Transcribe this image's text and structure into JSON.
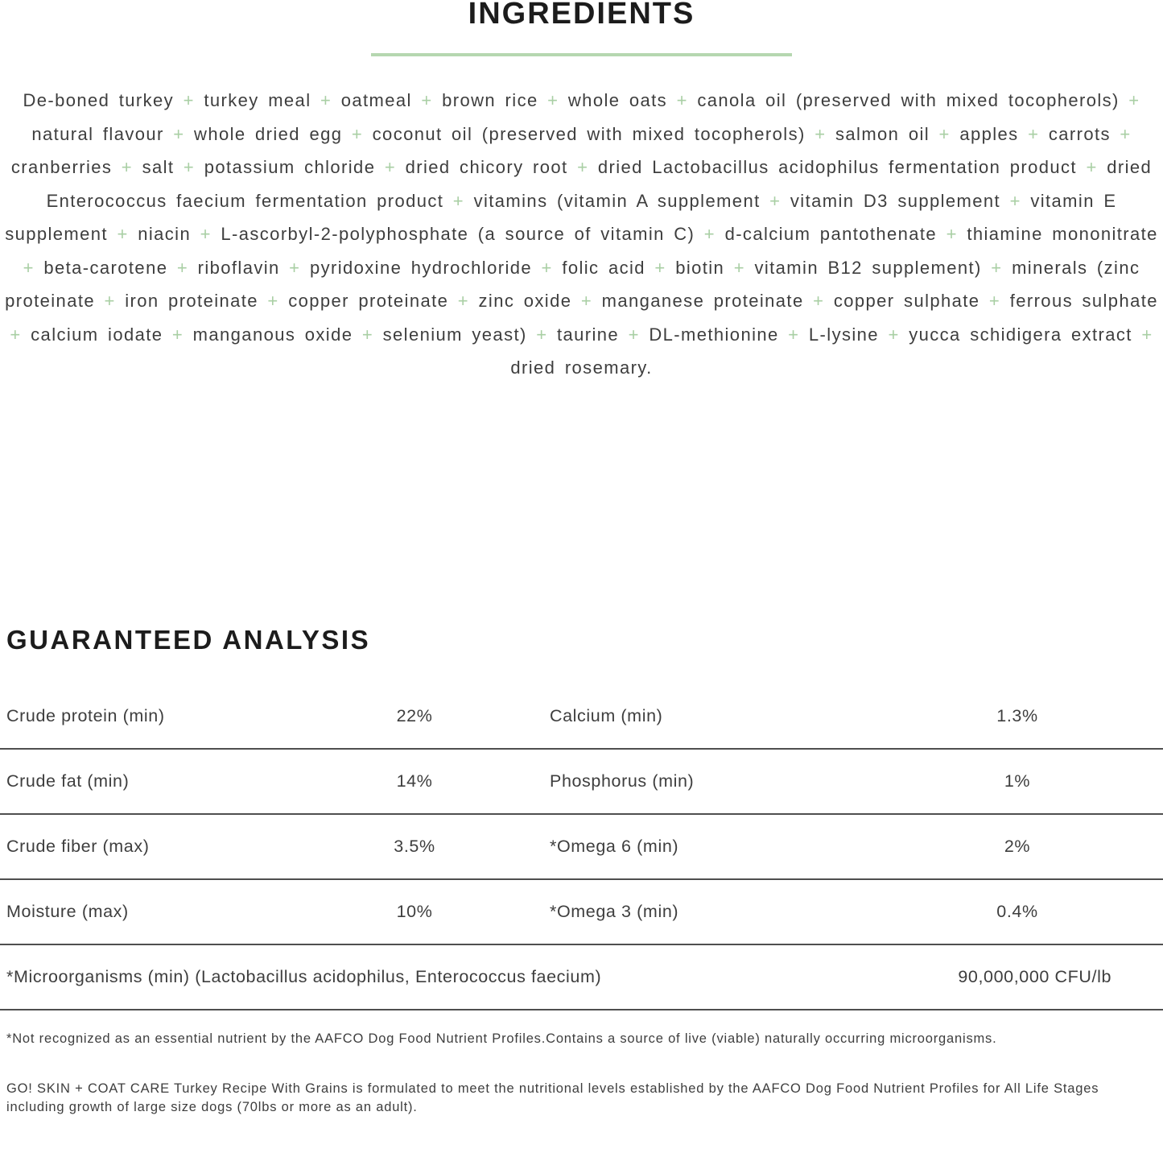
{
  "colors": {
    "accent_green_plus": "#a9cfa4",
    "accent_green_rule": "#b5d7b0",
    "divider_gray": "#4f4f4f",
    "body_text": "#3e3e3e",
    "heading_text": "#1c1c1c"
  },
  "ingredients": {
    "title": "INGREDIENTS",
    "separator": "+",
    "items": [
      "De-boned turkey",
      "turkey meal",
      "oatmeal",
      "brown rice",
      "whole oats",
      "canola oil (preserved with mixed tocopherols)",
      "natural flavour",
      "whole dried egg",
      "coconut oil (preserved with mixed tocopherols)",
      "salmon oil",
      "apples",
      "carrots",
      "cranberries",
      "salt",
      "potassium chloride",
      "dried chicory root",
      "dried Lactobacillus acidophilus fermentation product",
      "dried Enterococcus faecium fermentation product",
      "vitamins (vitamin A supplement",
      "vitamin D3 supplement",
      "vitamin E supplement",
      "niacin",
      "L-ascorbyl-2-polyphosphate (a source of vitamin C)",
      "d-calcium pantothenate",
      "thiamine mononitrate",
      "beta-carotene",
      "riboflavin",
      "pyridoxine hydrochloride",
      "folic acid",
      "biotin",
      "vitamin B12 supplement)",
      "minerals (zinc proteinate",
      "iron proteinate",
      "copper proteinate",
      "zinc oxide",
      "manganese proteinate",
      "copper sulphate",
      "ferrous sulphate",
      "calcium iodate",
      "manganous oxide",
      "selenium yeast)",
      "taurine",
      "DL-methionine",
      "L-lysine",
      "yucca schidigera extract",
      "dried rosemary."
    ]
  },
  "analysis": {
    "title": "GUARANTEED ANALYSIS",
    "rows": [
      {
        "left_label": "Crude protein (min)",
        "left_value": "22%",
        "right_label": "Calcium (min)",
        "right_value": "1.3%"
      },
      {
        "left_label": "Crude fat (min)",
        "left_value": "14%",
        "right_label": "Phosphorus (min)",
        "right_value": "1%"
      },
      {
        "left_label": "Crude fiber (max)",
        "left_value": "3.5%",
        "right_label": "*Omega 6 (min)",
        "right_value": "2%"
      },
      {
        "left_label": "Moisture (max)",
        "left_value": "10%",
        "right_label": "*Omega 3 (min)",
        "right_value": "0.4%"
      }
    ],
    "microorganisms": {
      "label": "*Microorganisms (min) (Lactobacillus acidophilus, Enterococcus faecium)",
      "value": "90,000,000 CFU/lb"
    },
    "footnote": "*Not recognized as an essential nutrient by the AAFCO Dog Food Nutrient Profiles.Contains a source of live (viable) naturally occurring microorganisms.",
    "statement": "GO! SKIN + COAT CARE Turkey Recipe With Grains is formulated to meet the nutritional levels established by the AAFCO Dog Food Nutrient Profiles for All Life Stages including growth of large size dogs (70lbs or more as an adult)."
  }
}
